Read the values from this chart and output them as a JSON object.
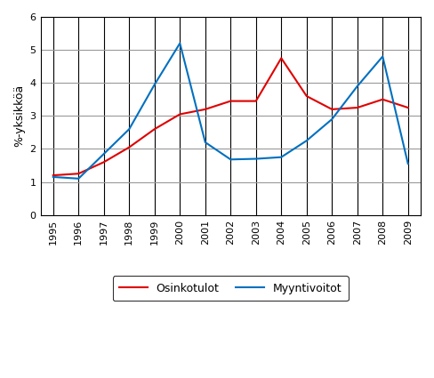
{
  "years": [
    1995,
    1996,
    1997,
    1998,
    1999,
    2000,
    2001,
    2002,
    2003,
    2004,
    2005,
    2006,
    2007,
    2008,
    2009
  ],
  "osinko": [
    1.2,
    1.25,
    1.6,
    2.05,
    2.6,
    3.05,
    3.2,
    3.45,
    3.45,
    4.75,
    3.6,
    3.2,
    3.25,
    3.5,
    3.25
  ],
  "myynti": [
    1.15,
    1.1,
    1.85,
    2.6,
    3.95,
    5.2,
    2.2,
    1.68,
    1.7,
    1.75,
    2.25,
    2.9,
    3.9,
    4.8,
    1.55
  ],
  "osinko_color": "#e00000",
  "myynti_color": "#0070c0",
  "ylabel": "%-yksikköä",
  "ylim": [
    0,
    6
  ],
  "yticks": [
    0,
    1,
    2,
    3,
    4,
    5,
    6
  ],
  "legend_osinko": "Osinkotulot",
  "legend_myynti": "Myyntivoitot",
  "h_grid_color": "#999999",
  "v_grid_color": "#000000",
  "line_width": 1.5,
  "tick_fontsize": 8,
  "ylabel_fontsize": 9
}
